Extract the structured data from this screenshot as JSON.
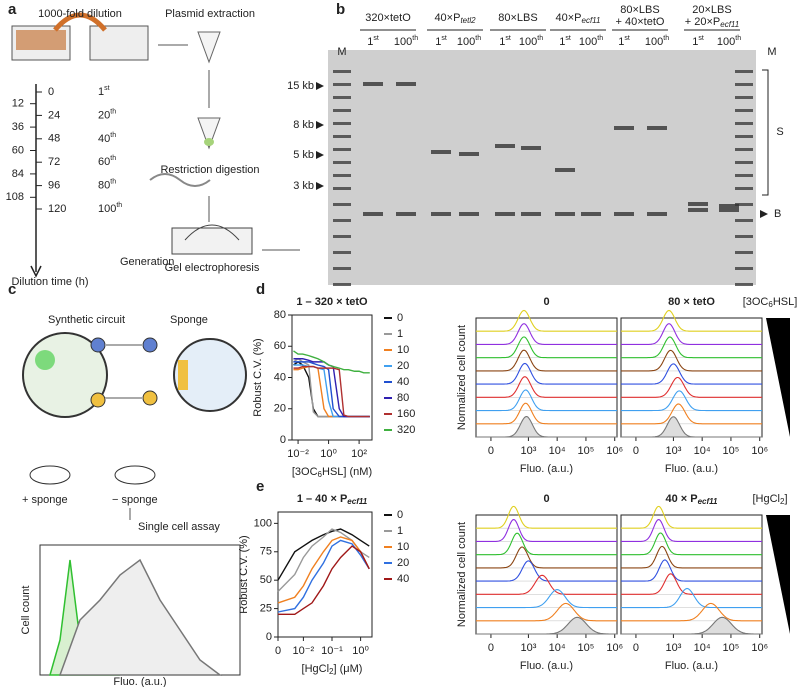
{
  "panel_a": {
    "letter": "a",
    "dilution": "1000-fold dilution",
    "plasmid": "Plasmid extraction",
    "restriction": "Restriction digestion",
    "gel": "Gel electrophoresis",
    "times": [
      0,
      12,
      24,
      36,
      48,
      60,
      72,
      84,
      96,
      108,
      120
    ],
    "generations": [
      [
        "1",
        "st"
      ],
      [
        "20",
        "th"
      ],
      [
        "40",
        "th"
      ],
      [
        "60",
        "th"
      ],
      [
        "80",
        "th"
      ],
      [
        "100",
        "th"
      ]
    ],
    "time_label": "Dilution time (h)",
    "generation_label": "Generation"
  },
  "panel_b": {
    "letter": "b",
    "marker": "M",
    "groups": [
      {
        "lines": [
          {
            "text": "320×tetO"
          }
        ]
      },
      {
        "lines": [
          {
            "text": "40×P",
            "sub": "tetl2"
          }
        ]
      },
      {
        "lines": [
          {
            "text": "80×LBS"
          }
        ]
      },
      {
        "lines": [
          {
            "text": "40×P",
            "sub": "ecf11"
          }
        ]
      },
      {
        "lines": [
          {
            "text": "80×LBS"
          },
          {
            "text": "+ 40×tetO"
          }
        ]
      },
      {
        "lines": [
          {
            "text": "20×LBS"
          },
          {
            "text": "+ 20×P",
            "sub": "ecf11"
          }
        ]
      }
    ],
    "lane_labels": [
      [
        "1",
        "st"
      ],
      [
        "100",
        "th"
      ]
    ],
    "sizes": [
      "15 kb",
      "8 kb",
      "5 kb",
      "3 kb"
    ],
    "sponge": "S",
    "backbone": "B"
  },
  "panel_c": {
    "letter": "c",
    "circuit": "Synthetic circuit",
    "sponge": "Sponge",
    "plus": "+ sponge",
    "minus": "− sponge",
    "assay": "Single cell assay",
    "ylabel": "Cell count",
    "xlabel": "Fluo. (a.u.)"
  },
  "chart_data": [
    {
      "type": "line",
      "letter": "d",
      "title": {
        "text": "1 – 320 × tetO"
      },
      "ylabel": "Robust C.V. (%)",
      "xlabel": {
        "text": "[3OC",
        "sub": "6",
        "rest": "HSL] (nM)"
      },
      "xscale": "log",
      "x": [
        0.005,
        0.01,
        0.02,
        0.05,
        0.1,
        0.2,
        0.5,
        1,
        2,
        5,
        10,
        20,
        50,
        100,
        200,
        500
      ],
      "xlim": [
        0.004,
        700
      ],
      "xticks": [
        {
          "value": 0.01,
          "label": "10⁻²"
        },
        {
          "value": 1,
          "label": "10⁰"
        },
        {
          "value": 100,
          "label": "10²"
        }
      ],
      "ylim": [
        0,
        80
      ],
      "yticks": [
        0,
        20,
        40,
        60,
        80
      ],
      "series": [
        {
          "name": "0",
          "color": "#111111",
          "values": [
            48,
            50,
            48,
            40,
            20,
            15,
            15,
            15,
            15,
            15,
            15,
            15,
            15,
            15,
            15,
            15
          ]
        },
        {
          "name": "1",
          "color": "#999999",
          "values": [
            50,
            52,
            50,
            48,
            18,
            15,
            15,
            15,
            15,
            15,
            15,
            15,
            15,
            15,
            15,
            15
          ]
        },
        {
          "name": "10",
          "color": "#f08020",
          "values": [
            45,
            45,
            46,
            47,
            47,
            46,
            20,
            15,
            15,
            15,
            15,
            15,
            15,
            15,
            15,
            15
          ]
        },
        {
          "name": "20",
          "color": "#40a0f0",
          "values": [
            48,
            48,
            48,
            47,
            47,
            46,
            45,
            25,
            15,
            15,
            15,
            15,
            15,
            15,
            15,
            15
          ]
        },
        {
          "name": "40",
          "color": "#2050d0",
          "values": [
            50,
            50,
            50,
            50,
            49,
            48,
            47,
            45,
            20,
            15,
            15,
            15,
            15,
            15,
            15,
            15
          ]
        },
        {
          "name": "80",
          "color": "#3020b0",
          "values": [
            52,
            52,
            52,
            51,
            50,
            50,
            50,
            48,
            47,
            20,
            15,
            15,
            15,
            15,
            15,
            15
          ]
        },
        {
          "name": "160",
          "color": "#b03030",
          "values": [
            46,
            46,
            47,
            47,
            47,
            46,
            46,
            46,
            46,
            45,
            16,
            15,
            15,
            15,
            15,
            15
          ]
        },
        {
          "name": "320",
          "color": "#40b040",
          "values": [
            57,
            55,
            55,
            54,
            53,
            52,
            50,
            48,
            47,
            46,
            45,
            45,
            44,
            44,
            43,
            43
          ]
        }
      ]
    },
    {
      "type": "ridgeline",
      "ylabel": "Normalized cell count",
      "xlabel": "Fluo. (a.u.)",
      "legend": {
        "text": "[3OC",
        "sub": "6",
        "rest": "HSL]"
      },
      "xscale": "asinh",
      "xlim": [
        -150,
        1200000
      ],
      "xticks": [
        0,
        {
          "value": 1000,
          "label": "10³"
        },
        {
          "value": 10000,
          "label": "10⁴"
        },
        {
          "value": 100000,
          "label": "10⁵"
        },
        {
          "value": 1000000,
          "label": "10⁶"
        }
      ],
      "colors": [
        "#e0d020",
        "#9030e0",
        "#30c030",
        "#8b4513",
        "#3050e0",
        "#e03030",
        "#40a0f0",
        "#f08020",
        "#777777"
      ],
      "panels": [
        {
          "title": {
            "text": "0"
          },
          "peaks": [
            700,
            700,
            700,
            700,
            750,
            750,
            800,
            800,
            850
          ]
        },
        {
          "title": {
            "text": "80 × tetO"
          },
          "peaks": [
            700,
            700,
            750,
            800,
            1000,
            1400,
            1600,
            1500,
            1000
          ]
        }
      ]
    },
    {
      "type": "line",
      "letter": "e",
      "title": {
        "text": "1 – 40 × P",
        "sub": "ecf11"
      },
      "ylabel": "Robust C.V. (%)",
      "xlabel": {
        "text": "[HgCl",
        "sub": "2",
        "rest": "] (μM)"
      },
      "xscale": "log",
      "axis_break": true,
      "x": [
        0,
        0.005,
        0.01,
        0.02,
        0.05,
        0.1,
        0.2,
        0.5,
        1,
        2
      ],
      "xlim": [
        0.004,
        2.5
      ],
      "xticks": [
        0,
        {
          "value": 0.01,
          "label": "10⁻²"
        },
        {
          "value": 0.1,
          "label": "10⁻¹"
        },
        {
          "value": 1,
          "label": "10⁰"
        }
      ],
      "ylim": [
        0,
        110
      ],
      "yticks": [
        0,
        25,
        50,
        75,
        100
      ],
      "series": [
        {
          "name": "0",
          "color": "#111111",
          "values": [
            50,
            75,
            80,
            85,
            90,
            93,
            95,
            90,
            85,
            80
          ]
        },
        {
          "name": "1",
          "color": "#999999",
          "values": [
            40,
            55,
            70,
            80,
            88,
            95,
            92,
            85,
            75,
            70
          ]
        },
        {
          "name": "10",
          "color": "#f08020",
          "values": [
            30,
            35,
            45,
            60,
            75,
            85,
            88,
            85,
            75,
            60
          ]
        },
        {
          "name": "20",
          "color": "#3070e0",
          "values": [
            22,
            25,
            35,
            50,
            65,
            80,
            85,
            82,
            72,
            60
          ]
        },
        {
          "name": "40",
          "color": "#a01818",
          "values": [
            20,
            20,
            25,
            30,
            45,
            60,
            70,
            80,
            75,
            60
          ]
        }
      ]
    },
    {
      "type": "ridgeline",
      "ylabel": "Normalized cell count",
      "xlabel": "Fluo. (a.u.)",
      "legend": {
        "text": "[HgCl",
        "sub": "2",
        "rest": "]"
      },
      "xscale": "asinh",
      "xlim": [
        -150,
        1200000
      ],
      "xticks": [
        0,
        {
          "value": 1000,
          "label": "10³"
        },
        {
          "value": 10000,
          "label": "10⁴"
        },
        {
          "value": 100000,
          "label": "10⁵"
        },
        {
          "value": 1000000,
          "label": "10⁶"
        }
      ],
      "colors": [
        "#e0d020",
        "#9030e0",
        "#30c030",
        "#8b4513",
        "#3050e0",
        "#e03030",
        "#40a0f0",
        "#f08020",
        "#777777"
      ],
      "panels": [
        {
          "title": {
            "text": "0"
          },
          "peaks": [
            300,
            300,
            400,
            600,
            1000,
            3000,
            10000,
            20000,
            50000
          ]
        },
        {
          "title": {
            "text": "40 × P",
            "sub": "ecf11"
          },
          "peaks": [
            300,
            300,
            350,
            400,
            500,
            800,
            3000,
            20000,
            50000
          ]
        }
      ]
    }
  ]
}
